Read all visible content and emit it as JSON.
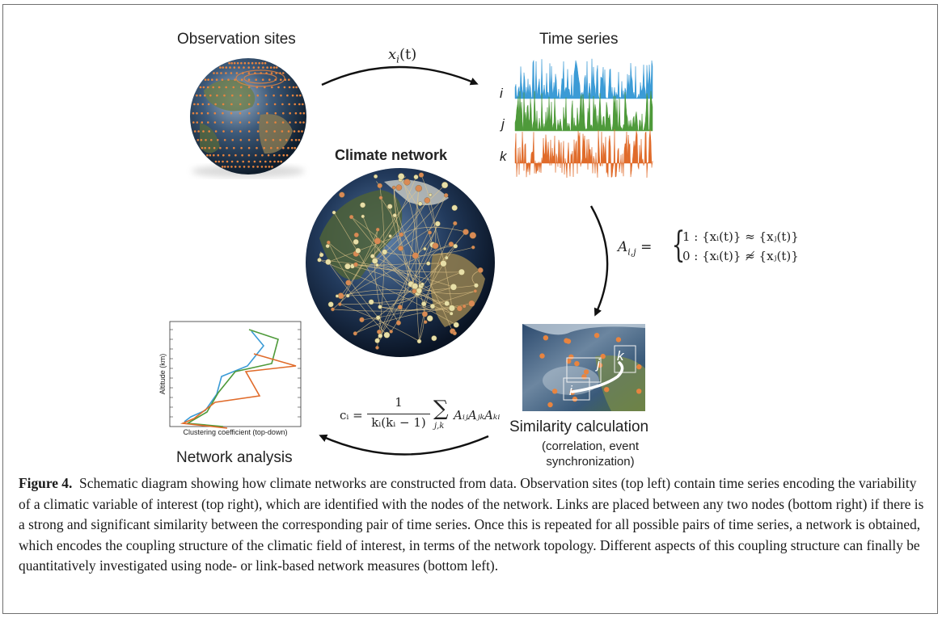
{
  "labels": {
    "observation_sites": "Observation sites",
    "time_series": "Time series",
    "climate_network": "Climate network",
    "similarity_calculation": "Similarity calculation",
    "similarity_note_line1": "(correlation, event",
    "similarity_note_line2": "synchronization)",
    "network_analysis": "Network analysis"
  },
  "arrows": {
    "top_label_var": "x",
    "top_label_sub": "i",
    "top_label_arg": "(t)"
  },
  "time_series": {
    "series": [
      {
        "name": "i",
        "color": "#3b9bd6"
      },
      {
        "name": "j",
        "color": "#4e9a3a"
      },
      {
        "name": "k",
        "color": "#e06b2a"
      }
    ]
  },
  "equations": {
    "adjacency_lhs": "A",
    "adjacency_lhs_sub": "i,j",
    "adjacency_row1": "1 : {xᵢ(t)} ≈ {xⱼ(t)}",
    "adjacency_row2": "0 : {xᵢ(t)} ≉ {xⱼ(t)}",
    "clustering_lhs": "cᵢ =",
    "clustering_num": "1",
    "clustering_den": "kᵢ(kᵢ − 1)",
    "clustering_sum_sub": "j,k",
    "clustering_rhs": "AᵢⱼAⱼₖAₖᵢ"
  },
  "similarity_map": {
    "node_labels": [
      "i",
      "j",
      "k"
    ]
  },
  "analysis_plot": {
    "ylabel": "Altitude (km)",
    "xlabel": "Clustering coefficient (top-down)",
    "series_colors": [
      "#3b9bd6",
      "#4e9a3a",
      "#e06b2a"
    ]
  },
  "caption": {
    "label": "Figure 4.",
    "text": "Schematic diagram showing how climate networks are constructed from data. Observation sites (top left) contain time series encoding the variability of a climatic variable of interest (top right), which are identified with the nodes of the network. Links are placed between any two nodes (bottom right) if there is a strong and significant similarity between the corresponding pair of time series. Once this is repeated for all possible pairs of time series, a network is obtained, which encodes the coupling structure of the climatic field of interest, in terms of the network topology. Different aspects of this coupling structure can finally be quantitatively investigated using node- or link-based network measures (bottom left)."
  }
}
